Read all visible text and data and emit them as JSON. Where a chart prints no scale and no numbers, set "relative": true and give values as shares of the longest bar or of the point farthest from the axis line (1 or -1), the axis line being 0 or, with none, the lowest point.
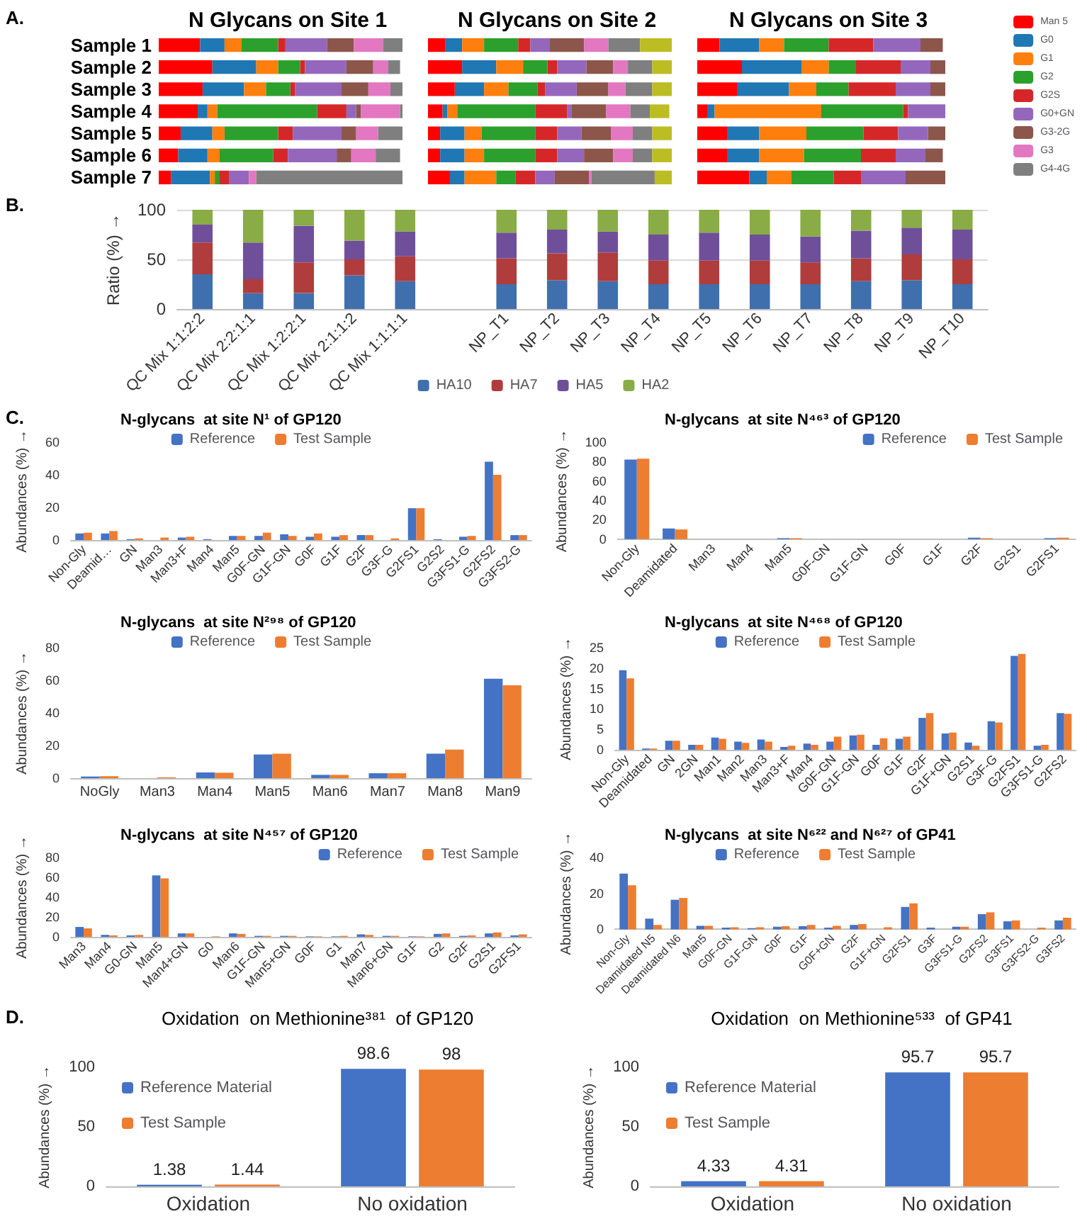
{
  "chart_data": [
    {
      "type": "bar",
      "title": "N Glycans on Site 1",
      "annotations": [
        "A."
      ],
      "orientation": "horizontal",
      "stacked": true,
      "relative": true,
      "legend": false,
      "categories": [
        "Sample 1",
        "Sample 2",
        "Sample 3",
        "Sample 4",
        "Sample 5",
        "Sample 6",
        "Sample 7"
      ],
      "series": [
        {
          "color": "#ff0000",
          "values": [
            0.17,
            0.22,
            0.18,
            0.16,
            0.09,
            0.08,
            0.05
          ]
        },
        {
          "color": "#1f77b4",
          "values": [
            0.1,
            0.18,
            0.17,
            0.04,
            0.13,
            0.12,
            0.16
          ]
        },
        {
          "color": "#ff7f0e",
          "values": [
            0.07,
            0.09,
            0.09,
            0.04,
            0.05,
            0.05,
            0.02
          ]
        },
        {
          "color": "#2ca02c",
          "values": [
            0.15,
            0.09,
            0.1,
            0.41,
            0.22,
            0.22,
            0.02
          ]
        },
        {
          "color": "#d62728",
          "values": [
            0.03,
            0.02,
            0.02,
            0.12,
            0.06,
            0.06,
            0.04
          ]
        },
        {
          "color": "#9467bd",
          "values": [
            0.17,
            0.17,
            0.19,
            0.04,
            0.2,
            0.2,
            0.08
          ]
        },
        {
          "color": "#8c564b",
          "values": [
            0.11,
            0.11,
            0.11,
            0.02,
            0.06,
            0.06,
            0
          ]
        },
        {
          "color": "#e377c2",
          "values": [
            0.12,
            0.06,
            0.09,
            0.16,
            0.09,
            0.1,
            0.03
          ]
        },
        {
          "color": "#7f7f7f",
          "values": [
            0.08,
            0.05,
            0.05,
            0.01,
            0.1,
            0.1,
            0.6
          ]
        }
      ]
    },
    {
      "type": "bar",
      "title": "N Glycans on Site 2",
      "orientation": "horizontal",
      "stacked": true,
      "relative": true,
      "legend": false,
      "categories": [
        null,
        null,
        null,
        null,
        null,
        null,
        null
      ],
      "series": [
        {
          "color": "#ff0000",
          "values": [
            0.07,
            0.14,
            0.11,
            0.06,
            0.05,
            0.05,
            0.09
          ]
        },
        {
          "color": "#1f77b4",
          "values": [
            0.07,
            0.14,
            0.12,
            0.02,
            0.1,
            0.1,
            0.06
          ]
        },
        {
          "color": "#ff7f0e",
          "values": [
            0.09,
            0.11,
            0.1,
            0.04,
            0.07,
            0.08,
            0.13
          ]
        },
        {
          "color": "#2ca02c",
          "values": [
            0.14,
            0.1,
            0.12,
            0.32,
            0.22,
            0.21,
            0.08
          ]
        },
        {
          "color": "#d62728",
          "values": [
            0.05,
            0.04,
            0.03,
            0.13,
            0.09,
            0.09,
            0.08
          ]
        },
        {
          "color": "#9467bd",
          "values": [
            0.08,
            0.12,
            0.13,
            0.02,
            0.1,
            0.11,
            0.08
          ]
        },
        {
          "color": "#8c564b",
          "values": [
            0.14,
            0.11,
            0.13,
            0.14,
            0.12,
            0.12,
            0.14
          ]
        },
        {
          "color": "#e377c2",
          "values": [
            0.1,
            0.06,
            0.07,
            0.1,
            0.09,
            0.08,
            0.01
          ]
        },
        {
          "color": "#7f7f7f",
          "values": [
            0.13,
            0.1,
            0.11,
            0.08,
            0.08,
            0.08,
            0.26
          ]
        },
        {
          "color": "#bcbd22",
          "values": [
            0.13,
            0.08,
            0.08,
            0.08,
            0.08,
            0.08,
            0.07
          ]
        }
      ]
    },
    {
      "type": "bar",
      "title": "N Glycans on Site 3",
      "orientation": "horizontal",
      "stacked": true,
      "relative": true,
      "legend": "right",
      "categories": [
        null,
        null,
        null,
        null,
        null,
        null,
        null
      ],
      "series": [
        {
          "name": "Man 5",
          "color": "#ff0000",
          "values": [
            0.09,
            0.18,
            0.16,
            0.04,
            0.12,
            0.12,
            0.21
          ]
        },
        {
          "name": "G0",
          "color": "#1f77b4",
          "values": [
            0.16,
            0.24,
            0.21,
            0.03,
            0.13,
            0.13,
            0.07
          ]
        },
        {
          "name": "G1",
          "color": "#ff7f0e",
          "values": [
            0.1,
            0.11,
            0.11,
            0.43,
            0.19,
            0.18,
            0.1
          ]
        },
        {
          "name": "G2",
          "color": "#2ca02c",
          "values": [
            0.18,
            0.11,
            0.13,
            0.33,
            0.23,
            0.23,
            0.17
          ]
        },
        {
          "name": "G2S",
          "color": "#d62728",
          "values": [
            0.18,
            0.18,
            0.19,
            0.02,
            0.14,
            0.14,
            0.11
          ]
        },
        {
          "name": "G0+GN",
          "color": "#9467bd",
          "values": [
            0.19,
            0.12,
            0.14,
            0.15,
            0.12,
            0.12,
            0.18
          ]
        },
        {
          "name": "G3-2G",
          "color": "#8c564b",
          "values": [
            0.09,
            0.06,
            0.06,
            0,
            0.07,
            0.07,
            0.16
          ]
        },
        {
          "name": "G3",
          "color": "#e377c2",
          "values": [
            0,
            0,
            0,
            0,
            0,
            0,
            0
          ]
        },
        {
          "name": "G4-4G",
          "color": "#7f7f7f",
          "values": [
            0,
            0,
            0,
            0,
            0,
            0,
            0
          ]
        }
      ]
    },
    {
      "type": "bar",
      "annotations": [
        "B."
      ],
      "ylabel": "Ratio (%) →",
      "stacked": true,
      "legend": "bottom",
      "grid": "y",
      "ylim": [
        0,
        100
      ],
      "yticks": [
        0,
        50,
        100
      ],
      "categories": [
        "QC Mix 1:1:2:2",
        "QC Mix 2:2:1:1",
        "QC Mix 1:2:2:1",
        "QC Mix 2:1:1:2",
        "QC Mix 1:1:1:1",
        null,
        "NP_T1",
        "NP_T2",
        "NP_T3",
        "NP_T4",
        "NP_T5",
        "NP_T6",
        "NP_T7",
        "NP_T8",
        "NP_T9",
        "NP_T10"
      ],
      "series": [
        {
          "name": "HA10",
          "color": "#3f6fad",
          "values": [
            35,
            16,
            16,
            34,
            28,
            null,
            25,
            29,
            28,
            25,
            25,
            25,
            25,
            28,
            29,
            25
          ]
        },
        {
          "name": "HA7",
          "color": "#b03c3c",
          "values": [
            32,
            14,
            31,
            16,
            25,
            null,
            26,
            27,
            29,
            24,
            24,
            24,
            22,
            23,
            26,
            25
          ]
        },
        {
          "name": "HA5",
          "color": "#6f4f9a",
          "values": [
            18,
            37,
            37,
            19,
            25,
            null,
            26,
            24,
            21,
            26,
            28,
            26,
            26,
            28,
            27,
            30
          ]
        },
        {
          "name": "HA2",
          "color": "#8aac46",
          "values": [
            15,
            33,
            16,
            31,
            22,
            null,
            23,
            20,
            22,
            25,
            23,
            25,
            27,
            21,
            18,
            20
          ]
        }
      ]
    },
    {
      "type": "bar",
      "title": "N-glycans  at site N¹ of GP120",
      "annotations": [
        "C."
      ],
      "ylabel": "Abundances (%) →",
      "legend": "top",
      "ylim": [
        0,
        60
      ],
      "yticks": [
        0,
        20,
        40,
        60
      ],
      "categories": [
        "Non-Gly",
        "Deamid…",
        "GN",
        "Man3",
        "Man3+F",
        "Man4",
        "Man5",
        "G0F-GN",
        "G1F-GN",
        "G0F",
        "G1F",
        "G2F",
        "G3F-G",
        "G2FS1",
        "G2S2",
        "G3FS1-G",
        "G2FS2",
        "G3FS2-G"
      ],
      "series": [
        {
          "name": "Reference",
          "color": "#4472c4",
          "values": [
            4,
            4,
            0.5,
            0,
            1.5,
            0.5,
            2.5,
            2.5,
            3.5,
            2,
            2,
            3,
            0,
            19.5,
            0.5,
            2,
            48,
            3
          ]
        },
        {
          "name": "Test Sample",
          "color": "#ed7d31",
          "values": [
            4.5,
            5.5,
            1,
            1.5,
            2,
            0,
            2.5,
            4.5,
            2.5,
            4,
            3,
            3,
            1,
            19.5,
            0,
            2.5,
            40,
            3
          ]
        }
      ]
    },
    {
      "type": "bar",
      "title": "N-glycans  at site N⁴⁶³ of GP120",
      "ylabel": "Abundances (%) →",
      "legend": "top right",
      "ylim": [
        0,
        100
      ],
      "yticks": [
        0,
        20,
        40,
        60,
        80,
        100
      ],
      "categories": [
        "Non-Gly",
        "Deamidated",
        "Man3",
        "Man4",
        "Man5",
        "G0F-GN",
        "G1F-GN",
        "G0F",
        "G1F",
        "G2F",
        "G2S1",
        "G2FS1"
      ],
      "series": [
        {
          "name": "Reference",
          "color": "#4472c4",
          "values": [
            82,
            11,
            0,
            0,
            1,
            0,
            0,
            0,
            0,
            1.5,
            0,
            1
          ]
        },
        {
          "name": "Test Sample",
          "color": "#ed7d31",
          "values": [
            83,
            10,
            0,
            0,
            1,
            0,
            0,
            0,
            0,
            1,
            0,
            1.5
          ]
        }
      ]
    },
    {
      "type": "bar",
      "title": "N-glycans  at site N²⁹⁸ of GP120",
      "ylabel": "Abundances (%) →",
      "legend": "top",
      "ylim": [
        0,
        80
      ],
      "yticks": [
        0,
        20,
        40,
        60,
        80
      ],
      "categories": [
        "NoGly",
        "Man3",
        "Man4",
        "Man5",
        "Man6",
        "Man7",
        "Man8",
        "Man9"
      ],
      "series": [
        {
          "name": "Reference",
          "color": "#4472c4",
          "values": [
            1,
            0,
            3.5,
            14.5,
            2,
            3,
            15,
            61
          ]
        },
        {
          "name": "Test Sample",
          "color": "#ed7d31",
          "values": [
            1.2,
            0.5,
            3.3,
            15,
            2,
            3,
            17.5,
            57
          ]
        }
      ]
    },
    {
      "type": "bar",
      "title": "N-glycans  at site N⁴⁶⁸ of GP120",
      "ylabel": "Abundances (%) →",
      "legend": "top",
      "ylim": [
        0,
        25
      ],
      "yticks": [
        0,
        5,
        10,
        15,
        20,
        25
      ],
      "categories": [
        "Non-Gly",
        "Deamidated",
        "GN",
        "2GN",
        "Man1",
        "Man2",
        "Man3",
        "Man3+F",
        "Man4",
        "G0F-GN",
        "G1F-GN",
        "G0F",
        "G1F",
        "G2F",
        "G1F+GN",
        "G2S1",
        "G3F-G",
        "G2FS1",
        "G3FS1-G",
        "G2FS2"
      ],
      "series": [
        {
          "name": "Reference",
          "color": "#4472c4",
          "values": [
            19.5,
            0.3,
            2.2,
            1.2,
            3,
            2,
            2.5,
            0.7,
            1.5,
            2,
            3.5,
            1.2,
            2.7,
            7.8,
            4,
            1.8,
            7,
            23,
            1,
            9
          ]
        },
        {
          "name": "Test Sample",
          "color": "#ed7d31",
          "values": [
            17.5,
            0.3,
            2.2,
            1.2,
            2.7,
            1.7,
            2,
            1,
            1.2,
            3.2,
            3.7,
            2.8,
            3.2,
            9,
            4.2,
            1,
            6.7,
            23.5,
            1.2,
            8.8
          ]
        }
      ]
    },
    {
      "type": "bar",
      "title": "N-glycans  at site N⁴⁵⁷ of GP120",
      "ylabel": "Abundances (%) →",
      "legend": "top right",
      "ylim": [
        0,
        80
      ],
      "yticks": [
        0,
        20,
        40,
        60,
        80
      ],
      "categories": [
        "Man3",
        "Man4",
        "G0-GN",
        "Man5",
        "Man4+GN",
        "G0",
        "Man6",
        "G1F-GN",
        "Man5+GN",
        "G0F",
        "G1",
        "Man7",
        "Man6+GN",
        "G1F",
        "G2",
        "G2F",
        "G2S1",
        "G2FS1"
      ],
      "series": [
        {
          "name": "Reference",
          "color": "#4472c4",
          "values": [
            10,
            2,
            1.5,
            62,
            3.5,
            0,
            3.5,
            1,
            1,
            0.5,
            0.5,
            2.5,
            1,
            0.5,
            3,
            1,
            3.5,
            1.5
          ]
        },
        {
          "name": "Test Sample",
          "color": "#ed7d31",
          "values": [
            8.5,
            1.5,
            2,
            59,
            3.5,
            0.5,
            3,
            1,
            1,
            0.5,
            1,
            2,
            1,
            0.5,
            3.5,
            1.5,
            4.5,
            2.5
          ]
        }
      ]
    },
    {
      "type": "bar",
      "title": "N-glycans  at site N⁶²² and N⁶²⁷ of GP41",
      "ylabel": "Abundances (%) →",
      "legend": "top",
      "ylim": [
        0,
        40
      ],
      "yticks": [
        0,
        20,
        40
      ],
      "categories": [
        "Non-Gly",
        "Deamidated N5",
        "Deamidated N6",
        "Man5",
        "G0F-GN",
        "G1F-GN",
        "G0F",
        "G1F",
        "G0F+GN",
        "G2F",
        "G1F+GN",
        "G2FS1",
        "G3F",
        "G3FS1-G",
        "G2FS2",
        "G3FS1",
        "G3FS2-G",
        "G3FS2"
      ],
      "series": [
        {
          "name": "Reference",
          "color": "#4472c4",
          "values": [
            31,
            6,
            16.5,
            2,
            1,
            0.7,
            1.5,
            1.8,
            1,
            2.5,
            0,
            12.5,
            1,
            1.5,
            8.5,
            4.5,
            0,
            5
          ]
        },
        {
          "name": "Test Sample",
          "color": "#ed7d31",
          "values": [
            24.5,
            2.5,
            17.5,
            2,
            1.2,
            1.2,
            1.8,
            2.5,
            2,
            3,
            1.2,
            14.5,
            0,
            1.5,
            9.5,
            5,
            1,
            6.5
          ]
        }
      ]
    },
    {
      "type": "bar",
      "title": "Oxidation  on Methionine³⁸¹  of GP120",
      "annotations": [
        "D."
      ],
      "ylabel": "Abundances (%) →",
      "legend": "top left",
      "data_labels": true,
      "ylim": [
        0,
        100
      ],
      "yticks": [
        0,
        50,
        100
      ],
      "categories": [
        "Oxidation",
        "No oxidation"
      ],
      "series": [
        {
          "name": "Reference Material",
          "color": "#4472c4",
          "values": [
            1.38,
            98.6
          ]
        },
        {
          "name": "Test Sample",
          "color": "#ed7d31",
          "values": [
            1.44,
            98
          ]
        }
      ]
    },
    {
      "type": "bar",
      "title": "Oxidation  on Methionine⁵³³  of GP41",
      "ylabel": "Abundances (%) →",
      "legend": "top left",
      "data_labels": true,
      "ylim": [
        0,
        100
      ],
      "yticks": [
        0,
        50,
        100
      ],
      "categories": [
        "Oxidation",
        "No oxidation"
      ],
      "series": [
        {
          "name": "Reference Material",
          "color": "#4472c4",
          "values": [
            4.33,
            95.7
          ]
        },
        {
          "name": "Test Sample",
          "color": "#ed7d31",
          "values": [
            4.31,
            95.7
          ]
        }
      ]
    }
  ]
}
